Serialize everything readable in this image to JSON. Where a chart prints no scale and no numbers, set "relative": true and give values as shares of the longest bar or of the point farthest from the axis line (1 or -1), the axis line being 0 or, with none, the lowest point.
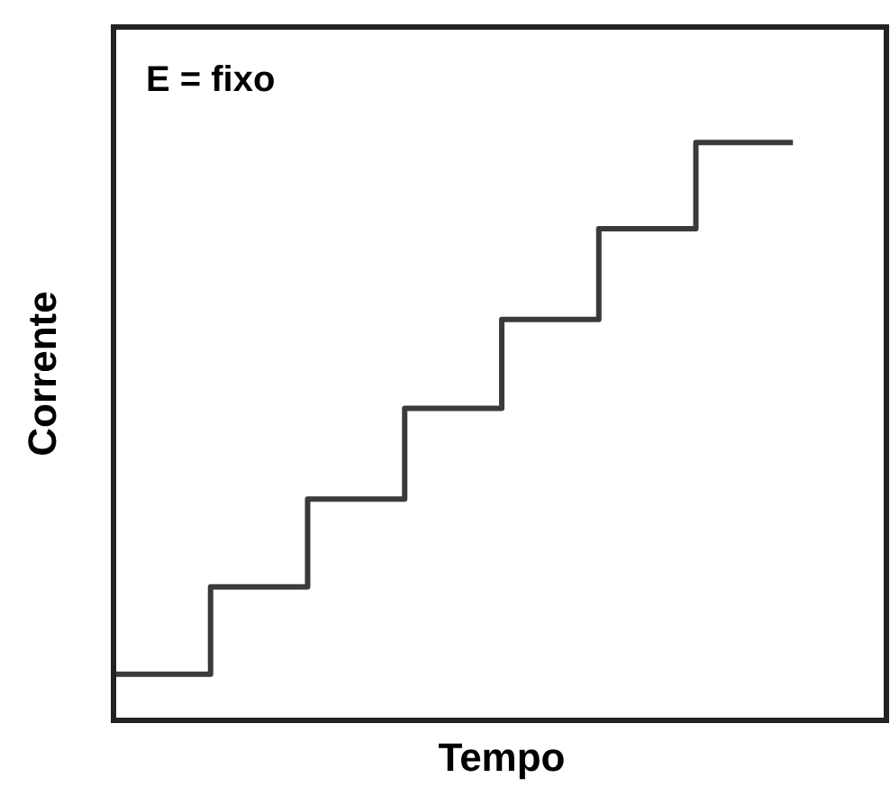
{
  "chart_data": {
    "type": "step",
    "relative": true,
    "xlabel": "Tempo",
    "ylabel": "Corrente",
    "annotations": [
      "E = fixo"
    ],
    "categories": [
      null,
      null,
      null,
      null,
      null,
      null,
      null,
      null,
      null
    ],
    "series": [
      {
        "color": "#3a3a3a",
        "values": [
          0.08,
          0.231,
          0.383,
          0.54,
          0.694,
          0.851,
          1,
          1,
          null
        ]
      }
    ],
    "legend": false,
    "grid": false,
    "marker": "none",
    "line_style": "solid"
  }
}
